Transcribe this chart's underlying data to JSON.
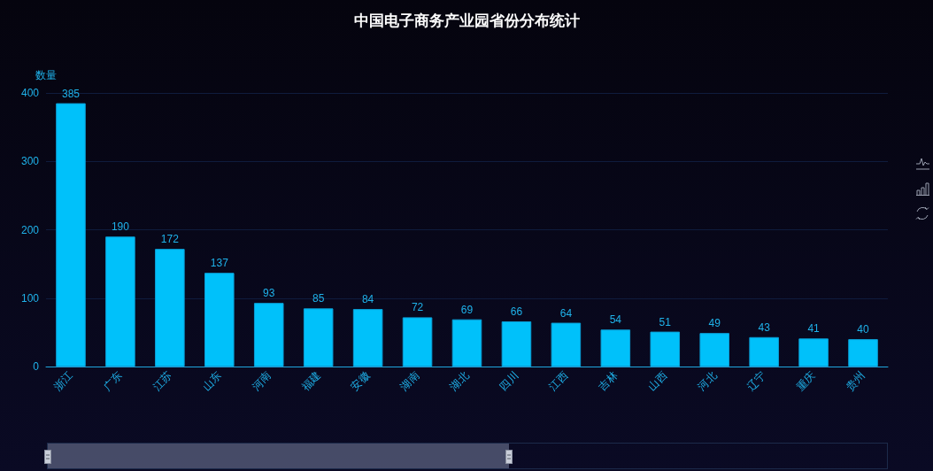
{
  "chart_data": {
    "type": "bar",
    "title": "中国电子商务产业园省份分布统计",
    "ylabel": "数量",
    "categories": [
      "浙江",
      "广东",
      "江苏",
      "山东",
      "河南",
      "福建",
      "安徽",
      "湖南",
      "湖北",
      "四川",
      "江西",
      "吉林",
      "山西",
      "河北",
      "辽宁",
      "重庆",
      "贵州"
    ],
    "values": [
      385,
      190,
      172,
      137,
      93,
      85,
      84,
      72,
      69,
      66,
      64,
      54,
      51,
      49,
      43,
      41,
      40
    ],
    "color": "#00c1fa",
    "ylim": [
      0,
      400
    ],
    "yticks": [
      0,
      100,
      200,
      300,
      400
    ],
    "grid": "y",
    "data_labels": true
  }
}
